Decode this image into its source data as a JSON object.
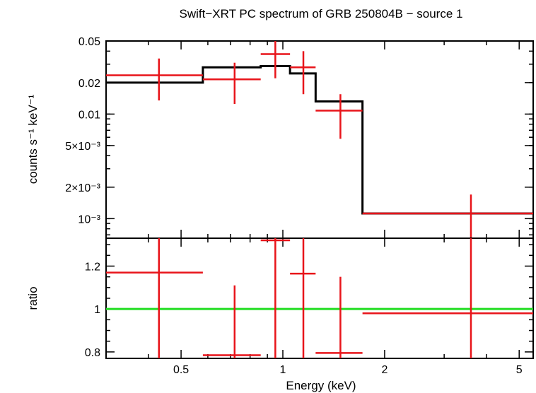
{
  "chart_data": [
    {
      "type": "scatter",
      "panel": "spectrum",
      "title": "Swift−XRT PC spectrum of GRB 250804B − source 1",
      "ylabel": "counts s⁻¹ keV⁻¹",
      "xscale": "log",
      "yscale": "log",
      "xlim": [
        0.3,
        5.5
      ],
      "ylim": [
        0.00065,
        0.05
      ],
      "yticks": [
        {
          "value": 0.05,
          "label": "0.05"
        },
        {
          "value": 0.02,
          "label": "0.02"
        },
        {
          "value": 0.01,
          "label": "0.01"
        },
        {
          "value": 0.005,
          "label": "5×10⁻³"
        },
        {
          "value": 0.002,
          "label": "2×10⁻³"
        },
        {
          "value": 0.001,
          "label": "10⁻³"
        }
      ],
      "data_color": "#e8141a",
      "model_color": "#000000",
      "data": [
        {
          "xlo": 0.3,
          "xhi": 0.58,
          "x": 0.43,
          "y": 0.0235,
          "ylo": 0.0135,
          "yhi": 0.034
        },
        {
          "xlo": 0.58,
          "xhi": 0.86,
          "x": 0.72,
          "y": 0.0215,
          "ylo": 0.0125,
          "yhi": 0.031
        },
        {
          "xlo": 0.86,
          "xhi": 1.05,
          "x": 0.95,
          "y": 0.0375,
          "ylo": 0.022,
          "yhi": 0.05
        },
        {
          "xlo": 1.05,
          "xhi": 1.25,
          "x": 1.15,
          "y": 0.028,
          "ylo": 0.0155,
          "yhi": 0.04
        },
        {
          "xlo": 1.25,
          "xhi": 1.72,
          "x": 1.48,
          "y": 0.0108,
          "ylo": 0.0058,
          "yhi": 0.0155
        },
        {
          "xlo": 1.72,
          "xhi": 5.5,
          "x": 3.6,
          "y": 0.00112,
          "ylo": 0.00065,
          "yhi": 0.0017
        }
      ],
      "model": [
        {
          "xlo": 0.3,
          "xhi": 0.58,
          "y": 0.02
        },
        {
          "xlo": 0.58,
          "xhi": 0.86,
          "y": 0.028
        },
        {
          "xlo": 0.86,
          "xhi": 1.05,
          "y": 0.0288
        },
        {
          "xlo": 1.05,
          "xhi": 1.25,
          "y": 0.0245
        },
        {
          "xlo": 1.25,
          "xhi": 1.72,
          "y": 0.0132
        },
        {
          "xlo": 1.72,
          "xhi": 5.5,
          "y": 0.00112
        }
      ]
    },
    {
      "type": "scatter",
      "panel": "ratio",
      "xlabel": "Energy (keV)",
      "ylabel": "ratio",
      "xscale": "log",
      "xlim": [
        0.3,
        5.5
      ],
      "ylim": [
        0.77,
        1.33
      ],
      "xticks": [
        {
          "value": 0.5,
          "label": "0.5"
        },
        {
          "value": 1,
          "label": "1"
        },
        {
          "value": 2,
          "label": "2"
        },
        {
          "value": 5,
          "label": "5"
        }
      ],
      "yticks": [
        {
          "value": 0.8,
          "label": "0.8"
        },
        {
          "value": 1,
          "label": "1"
        },
        {
          "value": 1.2,
          "label": "1.2"
        }
      ],
      "reference_line": {
        "y": 1.0,
        "color": "#22dd22"
      },
      "data_color": "#e8141a",
      "data": [
        {
          "xlo": 0.3,
          "xhi": 0.58,
          "x": 0.43,
          "y": 1.17,
          "ylo": 0.77,
          "yhi": 1.33
        },
        {
          "xlo": 0.58,
          "xhi": 0.86,
          "x": 0.72,
          "y": 0.785,
          "ylo": 0.77,
          "yhi": 1.11
        },
        {
          "xlo": 0.86,
          "xhi": 1.05,
          "x": 0.95,
          "y": 1.32,
          "ylo": 0.77,
          "yhi": 1.33
        },
        {
          "xlo": 1.05,
          "xhi": 1.25,
          "x": 1.15,
          "y": 1.165,
          "ylo": 0.77,
          "yhi": 1.33
        },
        {
          "xlo": 1.25,
          "xhi": 1.72,
          "x": 1.48,
          "y": 0.795,
          "ylo": 0.77,
          "yhi": 1.15
        },
        {
          "xlo": 1.72,
          "xhi": 5.5,
          "x": 3.6,
          "y": 0.98,
          "ylo": 0.77,
          "yhi": 1.33
        }
      ]
    }
  ]
}
